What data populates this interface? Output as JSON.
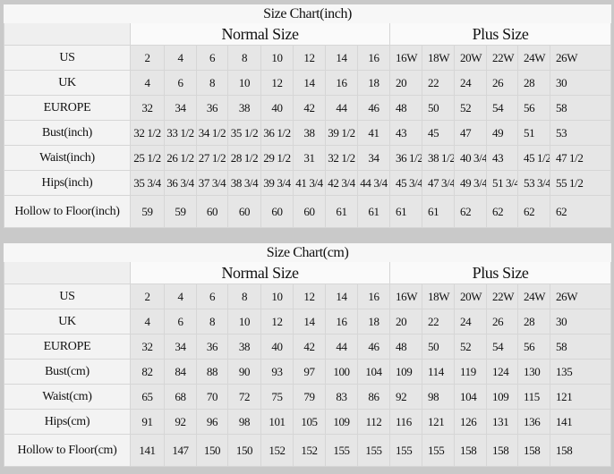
{
  "group_headers": {
    "normal": "Normal Size",
    "plus": "Plus Size"
  },
  "tables": [
    {
      "title": "Size Chart(inch)",
      "rows": [
        {
          "label": "US",
          "values": [
            "2",
            "4",
            "6",
            "8",
            "10",
            "12",
            "14",
            "16",
            "16W",
            "18W",
            "20W",
            "22W",
            "24W",
            "26W"
          ]
        },
        {
          "label": "UK",
          "values": [
            "4",
            "6",
            "8",
            "10",
            "12",
            "14",
            "16",
            "18",
            "20",
            "22",
            "24",
            "26",
            "28",
            "30"
          ]
        },
        {
          "label": "EUROPE",
          "values": [
            "32",
            "34",
            "36",
            "38",
            "40",
            "42",
            "44",
            "46",
            "48",
            "50",
            "52",
            "54",
            "56",
            "58"
          ]
        },
        {
          "label": "Bust(inch)",
          "values": [
            "32 1/2",
            "33 1/2",
            "34 1/2",
            "35 1/2",
            "36 1/2",
            "38",
            "39 1/2",
            "41",
            "43",
            "45",
            "47",
            "49",
            "51",
            "53"
          ]
        },
        {
          "label": "Waist(inch)",
          "values": [
            "25 1/2",
            "26 1/2",
            "27 1/2",
            "28 1/2",
            "29 1/2",
            "31",
            "32 1/2",
            "34",
            "36 1/2",
            "38 1/2",
            "40 3/4",
            "43",
            "45 1/2",
            "47 1/2"
          ]
        },
        {
          "label": "Hips(inch)",
          "values": [
            "35 3/4",
            "36 3/4",
            "37 3/4",
            "38 3/4",
            "39 3/4",
            "41 3/4",
            "42 3/4",
            "44 3/4",
            "45 3/4",
            "47 3/4",
            "49 3/4",
            "51 3/4",
            "53 3/4",
            "55 1/2"
          ]
        },
        {
          "label": "Hollow to Floor(inch)",
          "values": [
            "59",
            "59",
            "60",
            "60",
            "60",
            "60",
            "61",
            "61",
            "61",
            "61",
            "62",
            "62",
            "62",
            "62"
          ]
        }
      ]
    },
    {
      "title": "Size Chart(cm)",
      "rows": [
        {
          "label": "US",
          "values": [
            "2",
            "4",
            "6",
            "8",
            "10",
            "12",
            "14",
            "16",
            "16W",
            "18W",
            "20W",
            "22W",
            "24W",
            "26W"
          ]
        },
        {
          "label": "UK",
          "values": [
            "4",
            "6",
            "8",
            "10",
            "12",
            "14",
            "16",
            "18",
            "20",
            "22",
            "24",
            "26",
            "28",
            "30"
          ]
        },
        {
          "label": "EUROPE",
          "values": [
            "32",
            "34",
            "36",
            "38",
            "40",
            "42",
            "44",
            "46",
            "48",
            "50",
            "52",
            "54",
            "56",
            "58"
          ]
        },
        {
          "label": "Bust(cm)",
          "values": [
            "82",
            "84",
            "88",
            "90",
            "93",
            "97",
            "100",
            "104",
            "109",
            "114",
            "119",
            "124",
            "130",
            "135"
          ]
        },
        {
          "label": "Waist(cm)",
          "values": [
            "65",
            "68",
            "70",
            "72",
            "75",
            "79",
            "83",
            "86",
            "92",
            "98",
            "104",
            "109",
            "115",
            "121"
          ]
        },
        {
          "label": "Hips(cm)",
          "values": [
            "91",
            "92",
            "96",
            "98",
            "101",
            "105",
            "109",
            "112",
            "116",
            "121",
            "126",
            "131",
            "136",
            "141"
          ]
        },
        {
          "label": "Hollow to Floor(cm)",
          "values": [
            "141",
            "147",
            "150",
            "150",
            "152",
            "152",
            "155",
            "155",
            "155",
            "155",
            "158",
            "158",
            "158",
            "158"
          ]
        }
      ]
    }
  ]
}
